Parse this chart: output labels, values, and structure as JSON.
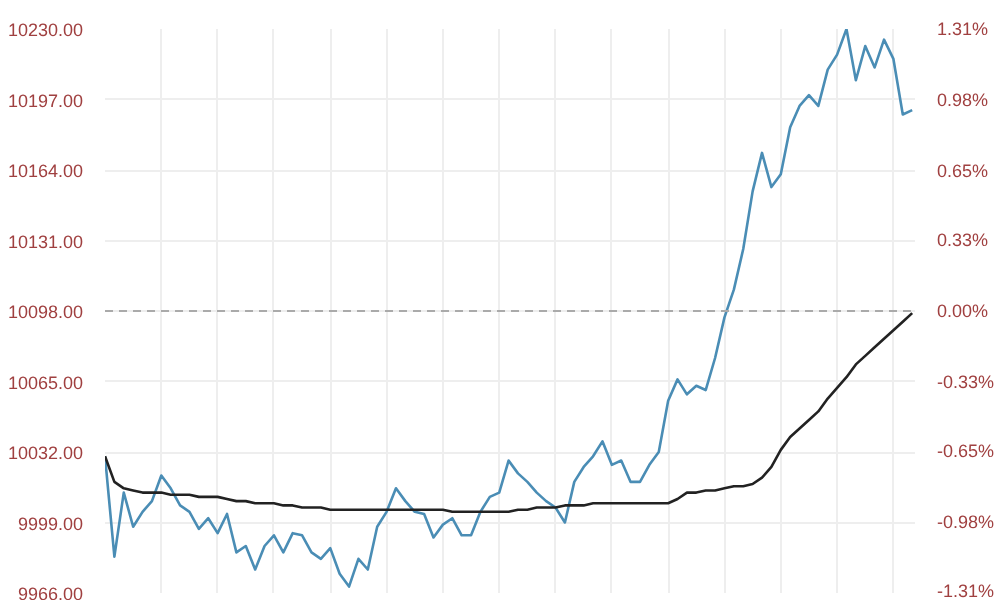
{
  "chart_data": {
    "type": "line",
    "categories": [
      null,
      null,
      null,
      null,
      null,
      null,
      null,
      null,
      null,
      null,
      null,
      null,
      null,
      null,
      null,
      null,
      null,
      null,
      null,
      null,
      null,
      null,
      null,
      null,
      null,
      null,
      null,
      null,
      null,
      null,
      null,
      null,
      null,
      null,
      null,
      null,
      null,
      null,
      null,
      null,
      null,
      null,
      null,
      null,
      null,
      null,
      null,
      null,
      null,
      null,
      null,
      null,
      null,
      null,
      null,
      null,
      null,
      null,
      null,
      null,
      null,
      null,
      null,
      null,
      null,
      null,
      null,
      null,
      null,
      null,
      null,
      null,
      null,
      null,
      null,
      null,
      null,
      null,
      null,
      null,
      null,
      null,
      null,
      null,
      null,
      null,
      null
    ],
    "ylim": [
      9966,
      10230
    ],
    "yticks": [
      {
        "value": 9966,
        "label": "9966.00"
      },
      {
        "value": 9999,
        "label": "9999.00"
      },
      {
        "value": 10032,
        "label": "10032.00"
      },
      {
        "value": 10065,
        "label": "10065.00"
      },
      {
        "value": 10098,
        "label": "10098.00"
      },
      {
        "value": 10131,
        "label": "10131.00"
      },
      {
        "value": 10164,
        "label": "10164.00"
      },
      {
        "value": 10197,
        "label": "10197.00"
      },
      {
        "value": 10230,
        "label": "10230.00"
      }
    ],
    "y2lim": [
      -1.31,
      1.31
    ],
    "y2ticks": [
      {
        "value": -1.31,
        "label": "-1.31%"
      },
      {
        "value": -0.98,
        "label": "-0.98%"
      },
      {
        "value": -0.65,
        "label": "-0.65%"
      },
      {
        "value": -0.33,
        "label": "-0.33%"
      },
      {
        "value": 0,
        "label": "0.00%"
      },
      {
        "value": 0.33,
        "label": "0.33%"
      },
      {
        "value": 0.65,
        "label": "0.65%"
      },
      {
        "value": 0.98,
        "label": "0.98%"
      },
      {
        "value": 1.31,
        "label": "1.31%"
      }
    ],
    "grid": true,
    "ref_lines": [
      {
        "axis": "y",
        "value": 10098,
        "line_style": "dashed",
        "color": "#aaaaaa"
      }
    ],
    "series": [
      {
        "color": "#4a8db5",
        "values": [
          10030,
          9983,
          10013,
          9997,
          10004,
          10009,
          10021,
          10015,
          10007,
          10004,
          9996,
          10001,
          9994,
          10003,
          9985,
          9988,
          9977,
          9988,
          9993,
          9985,
          9994,
          9993,
          9985,
          9982,
          9987,
          9975,
          9969,
          9982,
          9977,
          9997,
          10004,
          10015,
          10009,
          10004,
          10003,
          9992,
          9998,
          10001,
          9993,
          9993,
          10004,
          10011,
          10013,
          10028,
          10022,
          10018,
          10013,
          10009,
          10006,
          9999,
          10018,
          10025,
          10030,
          10037,
          10026,
          10028,
          10018,
          10018,
          10026,
          10032,
          10056,
          10066,
          10059,
          10063,
          10061,
          10076,
          10095,
          10108,
          10127,
          10154,
          10172,
          10156,
          10162,
          10184,
          10194,
          10199,
          10194,
          10211,
          10218,
          10230,
          10206,
          10222,
          10212,
          10225,
          10216,
          10190,
          10192
        ]
      },
      {
        "color": "#222222",
        "values": [
          10030,
          10018,
          10015,
          10014,
          10013,
          10013,
          10013,
          10012,
          10012,
          10012,
          10011,
          10011,
          10011,
          10010,
          10009,
          10009,
          10008,
          10008,
          10008,
          10007,
          10007,
          10006,
          10006,
          10006,
          10005,
          10005,
          10005,
          10005,
          10005,
          10005,
          10005,
          10005,
          10005,
          10005,
          10005,
          10005,
          10005,
          10004,
          10004,
          10004,
          10004,
          10004,
          10004,
          10004,
          10005,
          10005,
          10006,
          10006,
          10006,
          10007,
          10007,
          10007,
          10008,
          10008,
          10008,
          10008,
          10008,
          10008,
          10008,
          10008,
          10008,
          10010,
          10013,
          10013,
          10014,
          10014,
          10015,
          10016,
          10016,
          10017,
          10020,
          10025,
          10033,
          10039,
          10043,
          10047,
          10051,
          10057,
          10062,
          10067,
          10073,
          10077,
          10081,
          10085,
          10089,
          10093,
          10097
        ]
      }
    ]
  }
}
